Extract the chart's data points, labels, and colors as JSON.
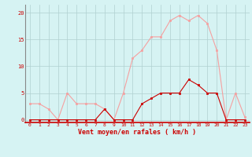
{
  "x": [
    0,
    1,
    2,
    3,
    4,
    5,
    6,
    7,
    8,
    9,
    10,
    11,
    12,
    13,
    14,
    15,
    16,
    17,
    18,
    19,
    20,
    21,
    22,
    23
  ],
  "rafales": [
    3,
    3,
    2,
    0,
    5,
    3,
    3,
    3,
    2,
    0,
    5,
    11.5,
    13,
    15.5,
    15.5,
    18.5,
    19.5,
    18.5,
    19.5,
    18,
    13,
    0,
    5,
    0.5
  ],
  "moyen": [
    0,
    0,
    0,
    0,
    0,
    0,
    0,
    0,
    2,
    0,
    0,
    0,
    3,
    4,
    5,
    5,
    5,
    7.5,
    6.5,
    5,
    5,
    0,
    0,
    0
  ],
  "line_color_rafales": "#f5a0a0",
  "line_color_moyen": "#cc0000",
  "bg_color": "#d6f3f3",
  "grid_color": "#b0d0d0",
  "xlabel": "Vent moyen/en rafales ( km/h )",
  "yticks": [
    0,
    5,
    10,
    15,
    20
  ],
  "ylim": [
    -0.5,
    21.5
  ],
  "xlim": [
    -0.5,
    23.5
  ]
}
